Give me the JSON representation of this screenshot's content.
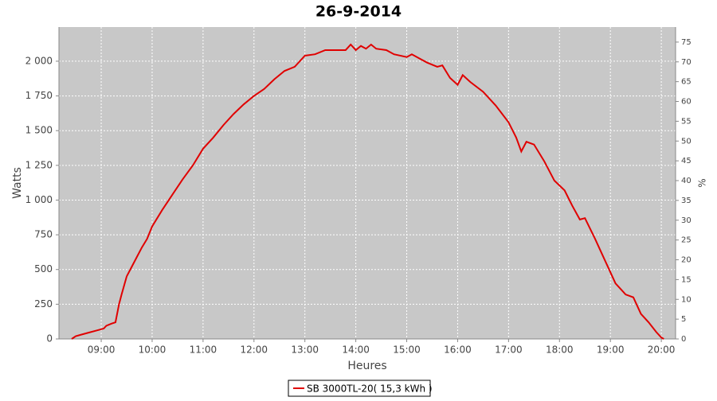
{
  "chart_data": {
    "type": "line",
    "title": "26-9-2014",
    "x_label": "Heures",
    "y_label": "Watts",
    "y2_label": "%",
    "x": [
      8.42,
      8.5,
      8.6,
      8.75,
      8.9,
      9.0,
      9.05,
      9.1,
      9.2,
      9.28,
      9.35,
      9.4,
      9.5,
      9.6,
      9.7,
      9.8,
      9.9,
      10.0,
      10.2,
      10.4,
      10.6,
      10.8,
      11.0,
      11.2,
      11.4,
      11.6,
      11.8,
      12.0,
      12.2,
      12.4,
      12.6,
      12.8,
      13.0,
      13.2,
      13.4,
      13.6,
      13.8,
      13.9,
      14.0,
      14.1,
      14.2,
      14.3,
      14.4,
      14.6,
      14.75,
      15.0,
      15.1,
      15.25,
      15.4,
      15.6,
      15.7,
      15.85,
      16.0,
      16.1,
      16.25,
      16.5,
      16.75,
      17.0,
      17.15,
      17.25,
      17.35,
      17.5,
      17.7,
      17.9,
      18.1,
      18.25,
      18.4,
      18.5,
      18.7,
      18.85,
      19.0,
      19.1,
      19.3,
      19.45,
      19.6,
      19.75,
      19.9,
      20.0,
      20.05
    ],
    "series": [
      {
        "name": "SB 3000TL-20( 15,3 kWh )",
        "color": "#e00000",
        "values": [
          0,
          20,
          30,
          45,
          60,
          70,
          75,
          95,
          110,
          120,
          250,
          320,
          450,
          520,
          590,
          660,
          720,
          810,
          930,
          1040,
          1150,
          1250,
          1370,
          1450,
          1540,
          1620,
          1690,
          1750,
          1800,
          1870,
          1930,
          1960,
          2040,
          2050,
          2080,
          2080,
          2080,
          2120,
          2080,
          2110,
          2090,
          2120,
          2090,
          2080,
          2050,
          2030,
          2050,
          2020,
          1990,
          1960,
          1970,
          1880,
          1830,
          1900,
          1850,
          1780,
          1680,
          1560,
          1450,
          1350,
          1420,
          1400,
          1280,
          1140,
          1070,
          960,
          860,
          870,
          720,
          600,
          480,
          400,
          320,
          300,
          180,
          120,
          50,
          10,
          0
        ]
      }
    ],
    "xlim": [
      8.17,
      20.28
    ],
    "xticks": [
      {
        "value": 9,
        "label": "09:00"
      },
      {
        "value": 10,
        "label": "10:00"
      },
      {
        "value": 11,
        "label": "11:00"
      },
      {
        "value": 12,
        "label": "12:00"
      },
      {
        "value": 13,
        "label": "13:00"
      },
      {
        "value": 14,
        "label": "14:00"
      },
      {
        "value": 15,
        "label": "15:00"
      },
      {
        "value": 16,
        "label": "16:00"
      },
      {
        "value": 17,
        "label": "17:00"
      },
      {
        "value": 18,
        "label": "18:00"
      },
      {
        "value": 19,
        "label": "19:00"
      },
      {
        "value": 20,
        "label": "20:00"
      }
    ],
    "ylim": [
      0,
      2246
    ],
    "yticks": [
      0,
      250,
      500,
      750,
      {
        "value": 1000,
        "label": "1 000"
      },
      {
        "value": 1250,
        "label": "1 250"
      },
      {
        "value": 1500,
        "label": "1 500"
      },
      {
        "value": 1750,
        "label": "1 750"
      },
      {
        "value": 2000,
        "label": "2 000"
      }
    ],
    "y2lim": [
      0,
      78.8
    ],
    "y2ticks": [
      0,
      5,
      10,
      15,
      20,
      25,
      30,
      35,
      40,
      45,
      50,
      55,
      60,
      65,
      70,
      75
    ],
    "grid": true
  }
}
